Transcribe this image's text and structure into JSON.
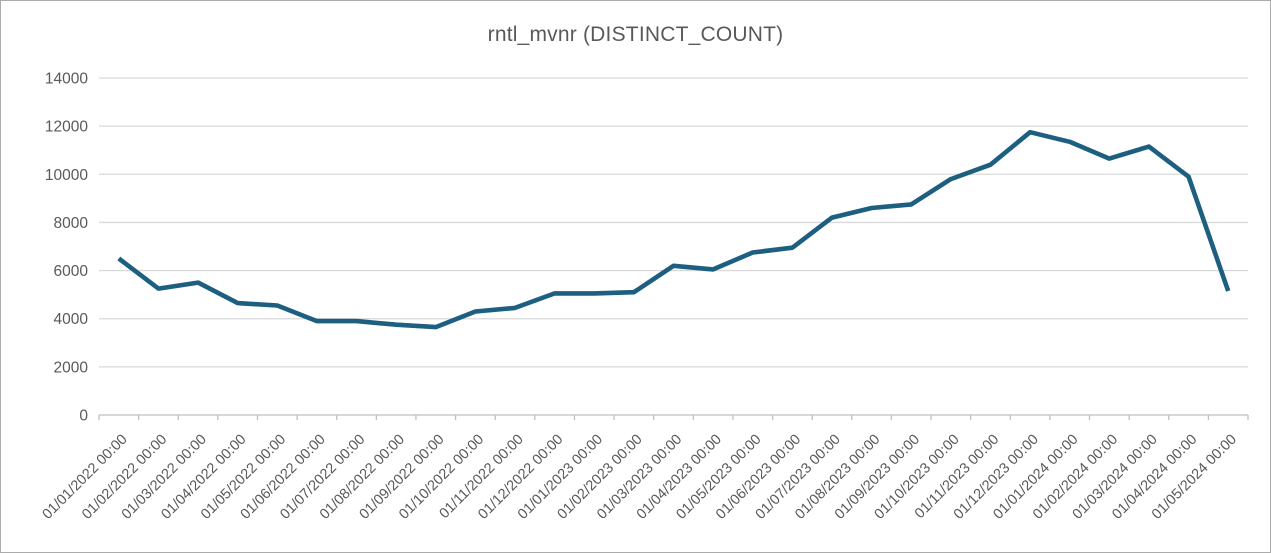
{
  "chart_data": {
    "type": "line",
    "title": "rntl_mvnr (DISTINCT_COUNT)",
    "x": [
      "01/01/2022 00:00",
      "01/02/2022 00:00",
      "01/03/2022 00:00",
      "01/04/2022 00:00",
      "01/05/2022 00:00",
      "01/06/2022 00:00",
      "01/07/2022 00:00",
      "01/08/2022 00:00",
      "01/09/2022 00:00",
      "01/10/2022 00:00",
      "01/11/2022 00:00",
      "01/12/2022 00:00",
      "01/01/2023 00:00",
      "01/02/2023 00:00",
      "01/03/2023 00:00",
      "01/04/2023 00:00",
      "01/05/2023 00:00",
      "01/06/2023 00:00",
      "01/07/2023 00:00",
      "01/08/2023 00:00",
      "01/09/2023 00:00",
      "01/10/2023 00:00",
      "01/11/2023 00:00",
      "01/12/2023 00:00",
      "01/01/2024 00:00",
      "01/02/2024 00:00",
      "01/03/2024 00:00",
      "01/04/2024 00:00",
      "01/05/2024 00:00"
    ],
    "series": [
      {
        "name": "rntl_mvnr (DISTINCT_COUNT)",
        "values": [
          6500,
          5250,
          5500,
          4650,
          4550,
          3900,
          3900,
          3750,
          3650,
          4300,
          4450,
          5050,
          5050,
          5100,
          6200,
          6050,
          6750,
          6950,
          8200,
          8600,
          8750,
          9800,
          10400,
          11750,
          11350,
          10650,
          11150,
          9900,
          5150
        ]
      }
    ],
    "ylim": [
      0,
      14000
    ],
    "ytick_step": 2000,
    "xlabel": "",
    "ylabel": "",
    "grid": "horizontal",
    "legend": "none",
    "colors": {
      "line": "#1d5f80",
      "gridline": "#d9d9d9",
      "axis": "#bfbfbf",
      "tick_label": "#595959",
      "title": "#595959",
      "background": "#ffffff",
      "border": "#ababab"
    }
  }
}
